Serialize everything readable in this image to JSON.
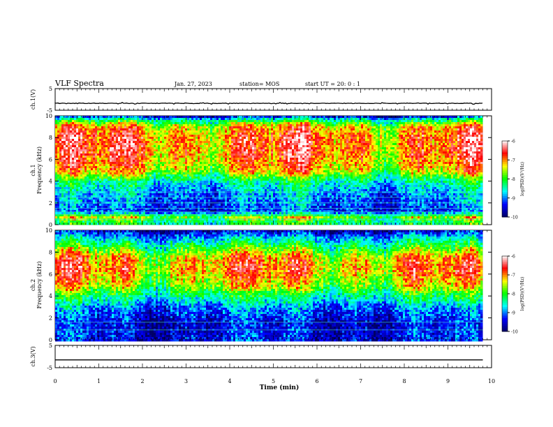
{
  "header": {
    "title": "VLF Spectra",
    "date": "Jan. 27, 2023",
    "station": "station= MOS",
    "start": "start  UT =   20: 0  : 1"
  },
  "chart_data": [
    {
      "type": "line",
      "panel": "ch1-voltage",
      "ylabel": "ch.1(V)",
      "ylim": [
        -5,
        5
      ],
      "yticks": [
        "5",
        "-5"
      ],
      "xlim": [
        0,
        10
      ],
      "series": [
        {
          "x": [
            0,
            9.8
          ],
          "values": [
            -1.8,
            -1.8
          ]
        }
      ]
    },
    {
      "type": "heatmap",
      "panel": "ch1-spectrogram",
      "ylabel": "ch.1\nFrequency (kHz)",
      "ylim": [
        0,
        10
      ],
      "yticks": [
        "0",
        "2",
        "4",
        "6",
        "8",
        "10"
      ],
      "xlim": [
        0,
        10
      ],
      "data_extent_x": [
        0,
        9.8
      ],
      "band_profile": [
        {
          "f": 0.3,
          "level": -8.2
        },
        {
          "f": 0.7,
          "level": -7.6
        },
        {
          "f": 1.2,
          "level": -9.3
        },
        {
          "f": 2.0,
          "level": -9.1
        },
        {
          "f": 3.0,
          "level": -8.9
        },
        {
          "f": 4.0,
          "level": -8.4
        },
        {
          "f": 5.0,
          "level": -7.3
        },
        {
          "f": 6.5,
          "level": -6.9
        },
        {
          "f": 8.0,
          "level": -6.9
        },
        {
          "f": 9.0,
          "level": -7.2
        },
        {
          "f": 9.6,
          "level": -8.3
        },
        {
          "f": 10.0,
          "level": -9.6
        }
      ],
      "colorbar": {
        "label": "log(PSD)(V²/Hz)",
        "range": [
          -10,
          -6
        ],
        "ticks": [
          "-6",
          "-7",
          "-8",
          "-9",
          "-10"
        ]
      }
    },
    {
      "type": "heatmap",
      "panel": "ch2-spectrogram",
      "ylabel": "ch.2\nFrequency (kHz)",
      "ylim": [
        0,
        10
      ],
      "yticks": [
        "0",
        "2",
        "4",
        "6",
        "8",
        "10"
      ],
      "xlim": [
        0,
        10
      ],
      "data_extent_x": [
        0,
        9.8
      ],
      "band_profile": [
        {
          "f": 0.3,
          "level": -9.4
        },
        {
          "f": 1.5,
          "level": -9.5
        },
        {
          "f": 3.0,
          "level": -9.0
        },
        {
          "f": 4.0,
          "level": -8.3
        },
        {
          "f": 5.0,
          "level": -7.5
        },
        {
          "f": 6.5,
          "level": -7.0
        },
        {
          "f": 7.5,
          "level": -7.2
        },
        {
          "f": 8.5,
          "level": -8.1
        },
        {
          "f": 9.3,
          "level": -8.8
        },
        {
          "f": 10.0,
          "level": -9.6
        }
      ],
      "colorbar": {
        "label": "log(PSD)(V²/Hz)",
        "range": [
          -10,
          -6
        ],
        "ticks": [
          "-6",
          "-7",
          "-8",
          "-9",
          "-10"
        ]
      }
    },
    {
      "type": "line",
      "panel": "ch3-voltage",
      "ylabel": "ch.3(V)",
      "ylim": [
        -5,
        5
      ],
      "yticks": [
        "5",
        "-5"
      ],
      "xlim": [
        0,
        10
      ],
      "series": [
        {
          "x": [
            0,
            9.8
          ],
          "values": [
            -1.5,
            -1.5
          ]
        }
      ]
    }
  ],
  "xaxis": {
    "label": "Time (min)",
    "ticks": [
      "0",
      "1",
      "2",
      "3",
      "4",
      "5",
      "6",
      "7",
      "8",
      "9",
      "10"
    ]
  },
  "colormap": [
    "#000066",
    "#0000ff",
    "#00ffff",
    "#00ff00",
    "#ffff00",
    "#ff0000",
    "#ffffff"
  ]
}
